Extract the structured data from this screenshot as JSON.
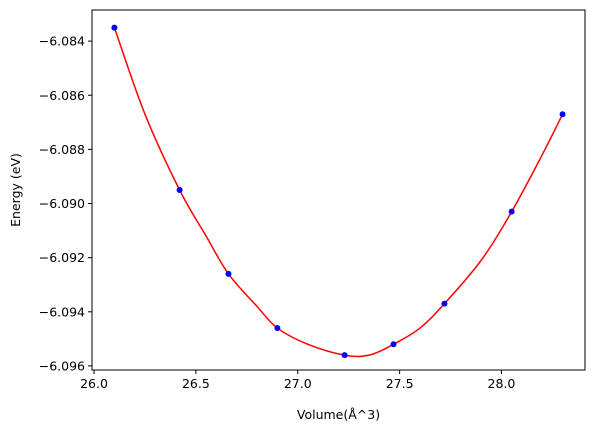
{
  "chart_data": {
    "type": "scatter",
    "xlabel": "Volume(Å^3)",
    "ylabel": "Energy (eV)",
    "xlim": [
      25.99,
      28.41
    ],
    "ylim": [
      -6.09615,
      -6.08285
    ],
    "xticks": [
      26.0,
      26.5,
      27.0,
      27.5,
      28.0
    ],
    "xtick_labels": [
      "26.0",
      "26.5",
      "27.0",
      "27.5",
      "28.0"
    ],
    "yticks": [
      -6.084,
      -6.086,
      -6.088,
      -6.09,
      -6.092,
      -6.094,
      -6.096
    ],
    "ytick_labels": [
      "−6.084",
      "−6.086",
      "−6.088",
      "−6.090",
      "−6.092",
      "−6.094",
      "−6.096"
    ],
    "grid": false,
    "series": [
      {
        "kind": "points",
        "color": "#0000ff",
        "x": [
          26.1,
          26.42,
          26.66,
          26.9,
          27.23,
          27.47,
          27.72,
          28.05,
          28.3
        ],
        "y": [
          -6.0835,
          -6.0895,
          -6.0926,
          -6.0946,
          -6.0956,
          -6.0952,
          -6.0937,
          -6.0903,
          -6.0867
        ]
      },
      {
        "kind": "fit-curve",
        "color": "#ff0000",
        "x": [
          26.1,
          26.25,
          26.42,
          26.55,
          26.66,
          26.8,
          26.9,
          27.05,
          27.23,
          27.35,
          27.47,
          27.6,
          27.72,
          27.9,
          28.05,
          28.2,
          28.3
        ],
        "y": [
          -6.0835,
          -6.0867,
          -6.0895,
          -6.0912,
          -6.0926,
          -6.0938,
          -6.0946,
          -6.0952,
          -6.0956,
          -6.0956,
          -6.0952,
          -6.0946,
          -6.0937,
          -6.0921,
          -6.0903,
          -6.0882,
          -6.0867
        ]
      }
    ]
  }
}
